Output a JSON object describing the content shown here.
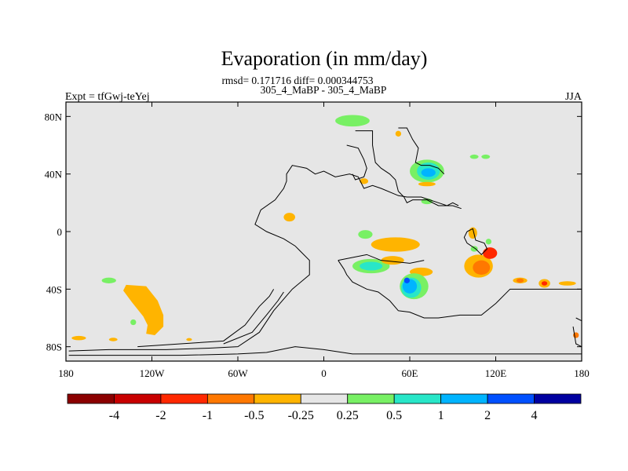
{
  "chart_data": {
    "type": "heatmap",
    "title": "Evaporation (in mm/day)",
    "stats": "rmsd= 0.171716 diff= 0.000344753",
    "subtitle": "305_4_MaBP - 305_4_MaBP",
    "left_label": "Expt = tfGwj-teYej",
    "right_label": "JJA",
    "x_range": [
      -180,
      180
    ],
    "y_range": [
      -90,
      90
    ],
    "x_ticks": [
      {
        "value": -180,
        "label": "180"
      },
      {
        "value": -120,
        "label": "120W"
      },
      {
        "value": -60,
        "label": "60W"
      },
      {
        "value": 0,
        "label": "0"
      },
      {
        "value": 60,
        "label": "60E"
      },
      {
        "value": 120,
        "label": "120E"
      },
      {
        "value": 180,
        "label": "180"
      }
    ],
    "y_ticks": [
      {
        "value": 80,
        "label": "80N"
      },
      {
        "value": 40,
        "label": "40N"
      },
      {
        "value": 0,
        "label": "0"
      },
      {
        "value": -40,
        "label": "40S"
      },
      {
        "value": -80,
        "label": "80S"
      }
    ],
    "colorbar": {
      "colors": [
        "#8b0000",
        "#c80000",
        "#ff2800",
        "#ff7800",
        "#ffb400",
        "#e6e6e6",
        "#78f064",
        "#28e6c8",
        "#00b4ff",
        "#0050ff",
        "#0000a0"
      ],
      "labels": [
        "-4",
        "-2",
        "-1",
        "-0.5",
        "-0.25",
        "0.25",
        "0.5",
        "1",
        "2",
        "4"
      ]
    },
    "anomalies": [
      {
        "lon": 20,
        "lat": 77,
        "rlon": 12,
        "rlat": 4,
        "color": "#78f064"
      },
      {
        "lon": 52,
        "lat": 68,
        "rlon": 2,
        "rlat": 2,
        "color": "#ffb400"
      },
      {
        "lon": 72,
        "lat": 42,
        "rlon": 12,
        "rlat": 8,
        "color": "#78f064"
      },
      {
        "lon": 73,
        "lat": 42,
        "rlon": 8,
        "rlat": 6,
        "color": "#28e6c8"
      },
      {
        "lon": 73,
        "lat": 41,
        "rlon": 5,
        "rlat": 3,
        "color": "#00b4ff"
      },
      {
        "lon": 72,
        "lat": 33,
        "rlon": 6,
        "rlat": 1.5,
        "color": "#ffb400"
      },
      {
        "lon": 105,
        "lat": 52,
        "rlon": 3,
        "rlat": 1.5,
        "color": "#78f064"
      },
      {
        "lon": 113,
        "lat": 52,
        "rlon": 3,
        "rlat": 1.5,
        "color": "#78f064"
      },
      {
        "lon": 28,
        "lat": 35,
        "rlon": 3,
        "rlat": 2,
        "color": "#ffb400"
      },
      {
        "lon": 72,
        "lat": 21,
        "rlon": 4,
        "rlat": 2,
        "color": "#78f064"
      },
      {
        "lon": -24,
        "lat": 10,
        "rlon": 4,
        "rlat": 3,
        "color": "#ffb400"
      },
      {
        "lon": 50,
        "lat": -9,
        "rlon": 17,
        "rlat": 5,
        "color": "#ffb400"
      },
      {
        "lon": 29,
        "lat": -2,
        "rlon": 5,
        "rlat": 3,
        "color": "#78f064"
      },
      {
        "lon": 104,
        "lat": -1,
        "rlon": 3,
        "rlat": 4,
        "color": "#ffb400"
      },
      {
        "lon": 33,
        "lat": -24,
        "rlon": 13,
        "rlat": 5,
        "color": "#78f064"
      },
      {
        "lon": 33,
        "lat": -24,
        "rlon": 8,
        "rlat": 3,
        "color": "#28e6c8"
      },
      {
        "lon": 48,
        "lat": -20,
        "rlon": 8,
        "rlat": 3,
        "color": "#ffb400"
      },
      {
        "lon": 68,
        "lat": -28,
        "rlon": 8,
        "rlat": 3,
        "color": "#ffb400"
      },
      {
        "lon": 63,
        "lat": -38,
        "rlon": 10,
        "rlat": 9,
        "color": "#78f064"
      },
      {
        "lon": 61,
        "lat": -39,
        "rlon": 7,
        "rlat": 7,
        "color": "#28e6c8"
      },
      {
        "lon": 60,
        "lat": -38,
        "rlon": 5,
        "rlat": 5,
        "color": "#00b4ff"
      },
      {
        "lon": 58,
        "lat": -34,
        "rlon": 2,
        "rlat": 2,
        "color": "#0050ff"
      },
      {
        "lon": 108,
        "lat": -24,
        "rlon": 10,
        "rlat": 8,
        "color": "#ffb400"
      },
      {
        "lon": 110,
        "lat": -25,
        "rlon": 6,
        "rlat": 5,
        "color": "#ff7800"
      },
      {
        "lon": 116,
        "lat": -15,
        "rlon": 5,
        "rlat": 4,
        "color": "#ff2800"
      },
      {
        "lon": 105,
        "lat": -12,
        "rlon": 2.5,
        "rlat": 2,
        "color": "#78f064"
      },
      {
        "lon": 115,
        "lat": -7,
        "rlon": 2,
        "rlat": 2,
        "color": "#78f064"
      },
      {
        "lon": 137,
        "lat": -34,
        "rlon": 5,
        "rlat": 2,
        "color": "#ffb400"
      },
      {
        "lon": 137,
        "lat": -34,
        "rlon": 2.5,
        "rlat": 1.5,
        "color": "#ff7800"
      },
      {
        "lon": 154,
        "lat": -36,
        "rlon": 4,
        "rlat": 3,
        "color": "#ffb400"
      },
      {
        "lon": 154,
        "lat": -36,
        "rlon": 2,
        "rlat": 1.5,
        "color": "#ff2800"
      },
      {
        "lon": 170,
        "lat": -36,
        "rlon": 6,
        "rlat": 1.5,
        "color": "#ffb400"
      },
      {
        "lon": 176,
        "lat": -72,
        "rlon": 2,
        "rlat": 2,
        "color": "#ff7800"
      },
      {
        "lon": -150,
        "lat": -34,
        "rlon": 5,
        "rlat": 2,
        "color": "#78f064"
      },
      {
        "lon": -133,
        "lat": -63,
        "rlon": 2,
        "rlat": 2,
        "color": "#78f064"
      },
      {
        "lon": -171,
        "lat": -74,
        "rlon": 5,
        "rlat": 1.5,
        "color": "#ffb400"
      },
      {
        "lon": -147,
        "lat": -75,
        "rlon": 3,
        "rlat": 1.2,
        "color": "#ffb400"
      },
      {
        "lon": -94,
        "lat": -75,
        "rlon": 2,
        "rlat": 1,
        "color": "#ffb400"
      }
    ],
    "anomaly_polygons": [
      {
        "color": "#ffb400",
        "points": [
          [
            -138,
            -37
          ],
          [
            -124,
            -38
          ],
          [
            -116,
            -48
          ],
          [
            -112,
            -58
          ],
          [
            -112,
            -66
          ],
          [
            -118,
            -72
          ],
          [
            -124,
            -71
          ],
          [
            -123,
            -65
          ],
          [
            -126,
            -59
          ],
          [
            -134,
            -49
          ],
          [
            -140,
            -41
          ]
        ]
      }
    ],
    "coastlines": [
      [
        [
          -178,
          -83
        ],
        [
          -150,
          -82
        ],
        [
          -110,
          -82
        ],
        [
          -80,
          -81
        ],
        [
          -60,
          -80
        ],
        [
          -45,
          -70
        ],
        [
          -35,
          -55
        ],
        [
          -22,
          -40
        ],
        [
          -10,
          -30
        ],
        [
          -10,
          -20
        ],
        [
          -20,
          -10
        ],
        [
          -28,
          -5
        ],
        [
          -40,
          0
        ],
        [
          -48,
          5
        ],
        [
          -44,
          15
        ],
        [
          -34,
          22
        ],
        [
          -28,
          30
        ],
        [
          -26,
          35
        ],
        [
          -26,
          40
        ],
        [
          -22,
          46
        ],
        [
          -12,
          44
        ],
        [
          -6,
          40
        ],
        [
          0,
          42
        ],
        [
          8,
          38
        ],
        [
          18,
          40
        ],
        [
          24,
          38
        ],
        [
          28,
          30
        ],
        [
          34,
          32
        ],
        [
          40,
          30
        ],
        [
          52,
          25
        ],
        [
          58,
          24
        ],
        [
          68,
          24
        ],
        [
          80,
          20
        ],
        [
          86,
          18
        ],
        [
          90,
          20
        ],
        [
          94,
          18
        ]
      ],
      [
        [
          -178,
          -86
        ],
        [
          -100,
          -86
        ],
        [
          -60,
          -85
        ],
        [
          -40,
          -84
        ],
        [
          -20,
          -80
        ],
        [
          0,
          -82
        ],
        [
          20,
          -85
        ],
        [
          180,
          -85
        ]
      ],
      [
        [
          -130,
          -80
        ],
        [
          -100,
          -78
        ],
        [
          -70,
          -76
        ],
        [
          -55,
          -65
        ],
        [
          -45,
          -52
        ],
        [
          -38,
          -45
        ],
        [
          -35,
          -40
        ]
      ],
      [
        [
          -70,
          -78
        ],
        [
          -50,
          -70
        ],
        [
          -40,
          -58
        ],
        [
          -32,
          -48
        ],
        [
          -28,
          -42
        ]
      ],
      [
        [
          10,
          -20
        ],
        [
          14,
          -26
        ],
        [
          16,
          -30
        ],
        [
          20,
          -35
        ],
        [
          30,
          -40
        ],
        [
          38,
          -42
        ],
        [
          46,
          -48
        ],
        [
          52,
          -55
        ],
        [
          60,
          -56
        ],
        [
          70,
          -60
        ],
        [
          80,
          -60
        ],
        [
          95,
          -58
        ],
        [
          110,
          -58
        ],
        [
          120,
          -50
        ],
        [
          130,
          -40
        ],
        [
          140,
          -40
        ],
        [
          150,
          -40
        ],
        [
          160,
          -40
        ],
        [
          170,
          -40
        ],
        [
          180,
          -40
        ]
      ],
      [
        [
          10,
          -20
        ],
        [
          20,
          -18
        ],
        [
          30,
          -16
        ],
        [
          40,
          -20
        ],
        [
          60,
          -22
        ],
        [
          70,
          -20
        ]
      ],
      [
        [
          22,
          70
        ],
        [
          34,
          70
        ],
        [
          34,
          60
        ],
        [
          36,
          48
        ],
        [
          40,
          44
        ],
        [
          46,
          40
        ],
        [
          50,
          36
        ],
        [
          52,
          28
        ],
        [
          56,
          24
        ],
        [
          58,
          20
        ],
        [
          62,
          22
        ],
        [
          72,
          22
        ],
        [
          80,
          18
        ],
        [
          90,
          18
        ],
        [
          96,
          16
        ]
      ],
      [
        [
          52,
          72
        ],
        [
          58,
          72
        ],
        [
          62,
          64
        ],
        [
          66,
          58
        ],
        [
          64,
          48
        ],
        [
          68,
          46
        ],
        [
          74,
          46
        ],
        [
          80,
          44
        ],
        [
          84,
          40
        ]
      ],
      [
        [
          16,
          60
        ],
        [
          24,
          58
        ],
        [
          28,
          50
        ],
        [
          30,
          44
        ],
        [
          28,
          38
        ],
        [
          22,
          36
        ],
        [
          20,
          40
        ]
      ],
      [
        [
          100,
          0
        ],
        [
          104,
          2
        ],
        [
          106,
          -6
        ],
        [
          112,
          -8
        ],
        [
          114,
          -12
        ],
        [
          110,
          -16
        ],
        [
          106,
          -12
        ],
        [
          100,
          -8
        ],
        [
          98,
          -4
        ],
        [
          100,
          0
        ]
      ],
      [
        [
          176,
          -60
        ],
        [
          180,
          -62
        ]
      ],
      [
        [
          174,
          -66
        ],
        [
          176,
          -78
        ],
        [
          180,
          -80
        ]
      ]
    ]
  }
}
